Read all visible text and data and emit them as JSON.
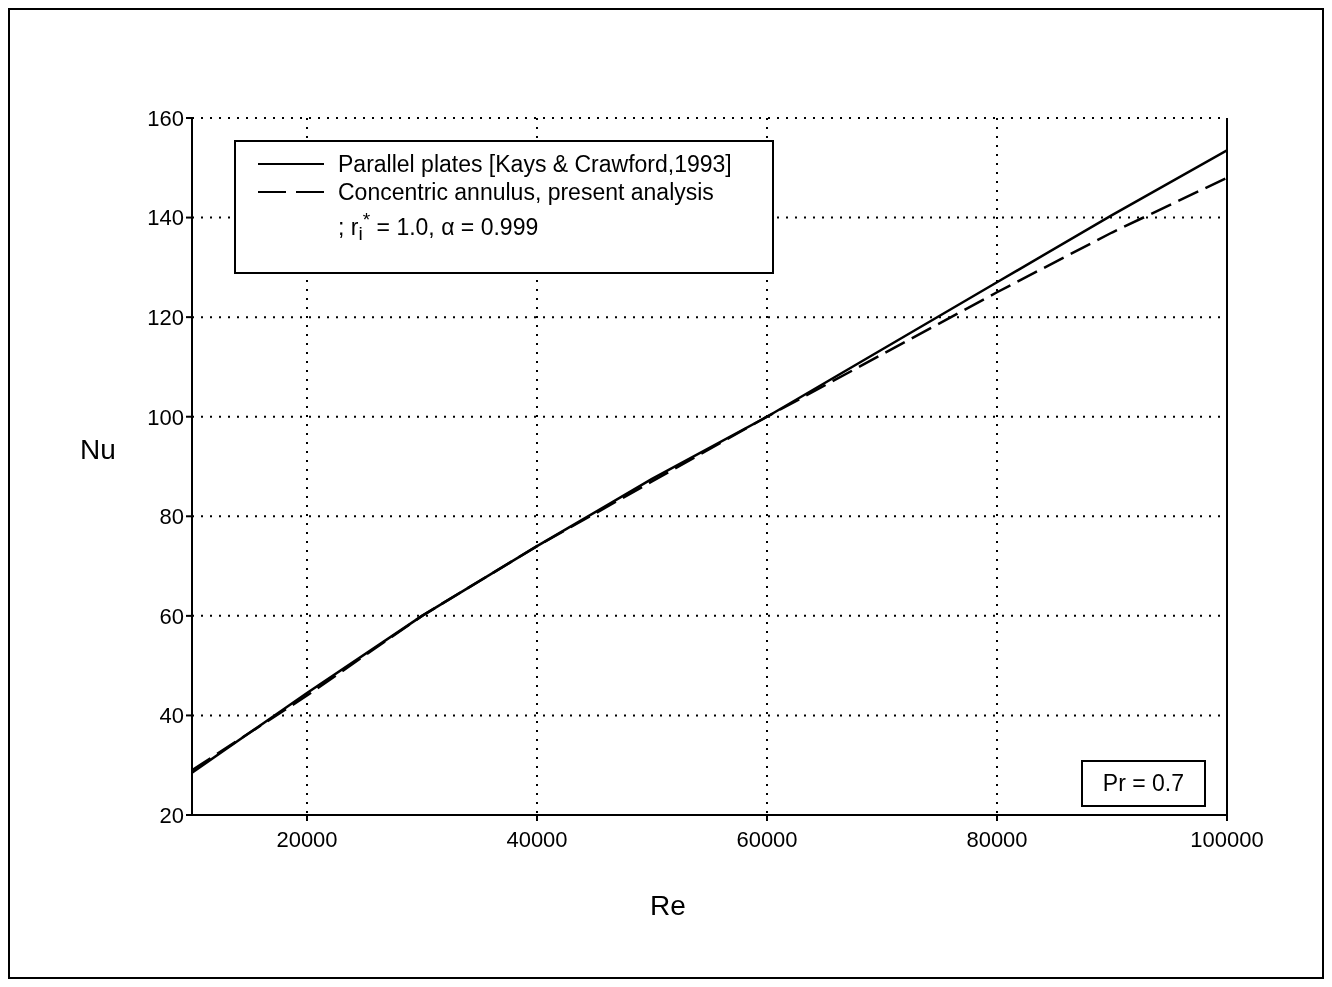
{
  "chart_data": {
    "type": "line",
    "xlabel": "Re",
    "ylabel": "Nu",
    "x": [
      10000,
      20000,
      30000,
      40000,
      50000,
      60000,
      70000,
      80000,
      90000,
      100000
    ],
    "series": [
      {
        "name": "Parallel plates [Kays & Crawford,1993]",
        "color": "#000000",
        "line_style": "solid",
        "values": [
          28.5,
          44.5,
          60,
          74,
          87.5,
          100,
          113.5,
          127,
          140.5,
          153.5
        ]
      },
      {
        "name": "Concentric annulus, present analysis\n; r$_{i}$$^{*}$ = 1.0, α = 0.999",
        "color": "#000000",
        "line_style": "dashed",
        "values": [
          29,
          44,
          60,
          74,
          87,
          100,
          112.5,
          125,
          137,
          148
        ]
      }
    ],
    "xlim": [
      10000,
      100000
    ],
    "xticks": [
      20000,
      40000,
      60000,
      80000,
      100000
    ],
    "ylim": [
      20,
      160
    ],
    "yticks": [
      20,
      40,
      60,
      80,
      100,
      120,
      140,
      160
    ],
    "grid": true,
    "legend": "top left",
    "marker": "none",
    "annotations": [
      "Pr = 0.7"
    ]
  }
}
